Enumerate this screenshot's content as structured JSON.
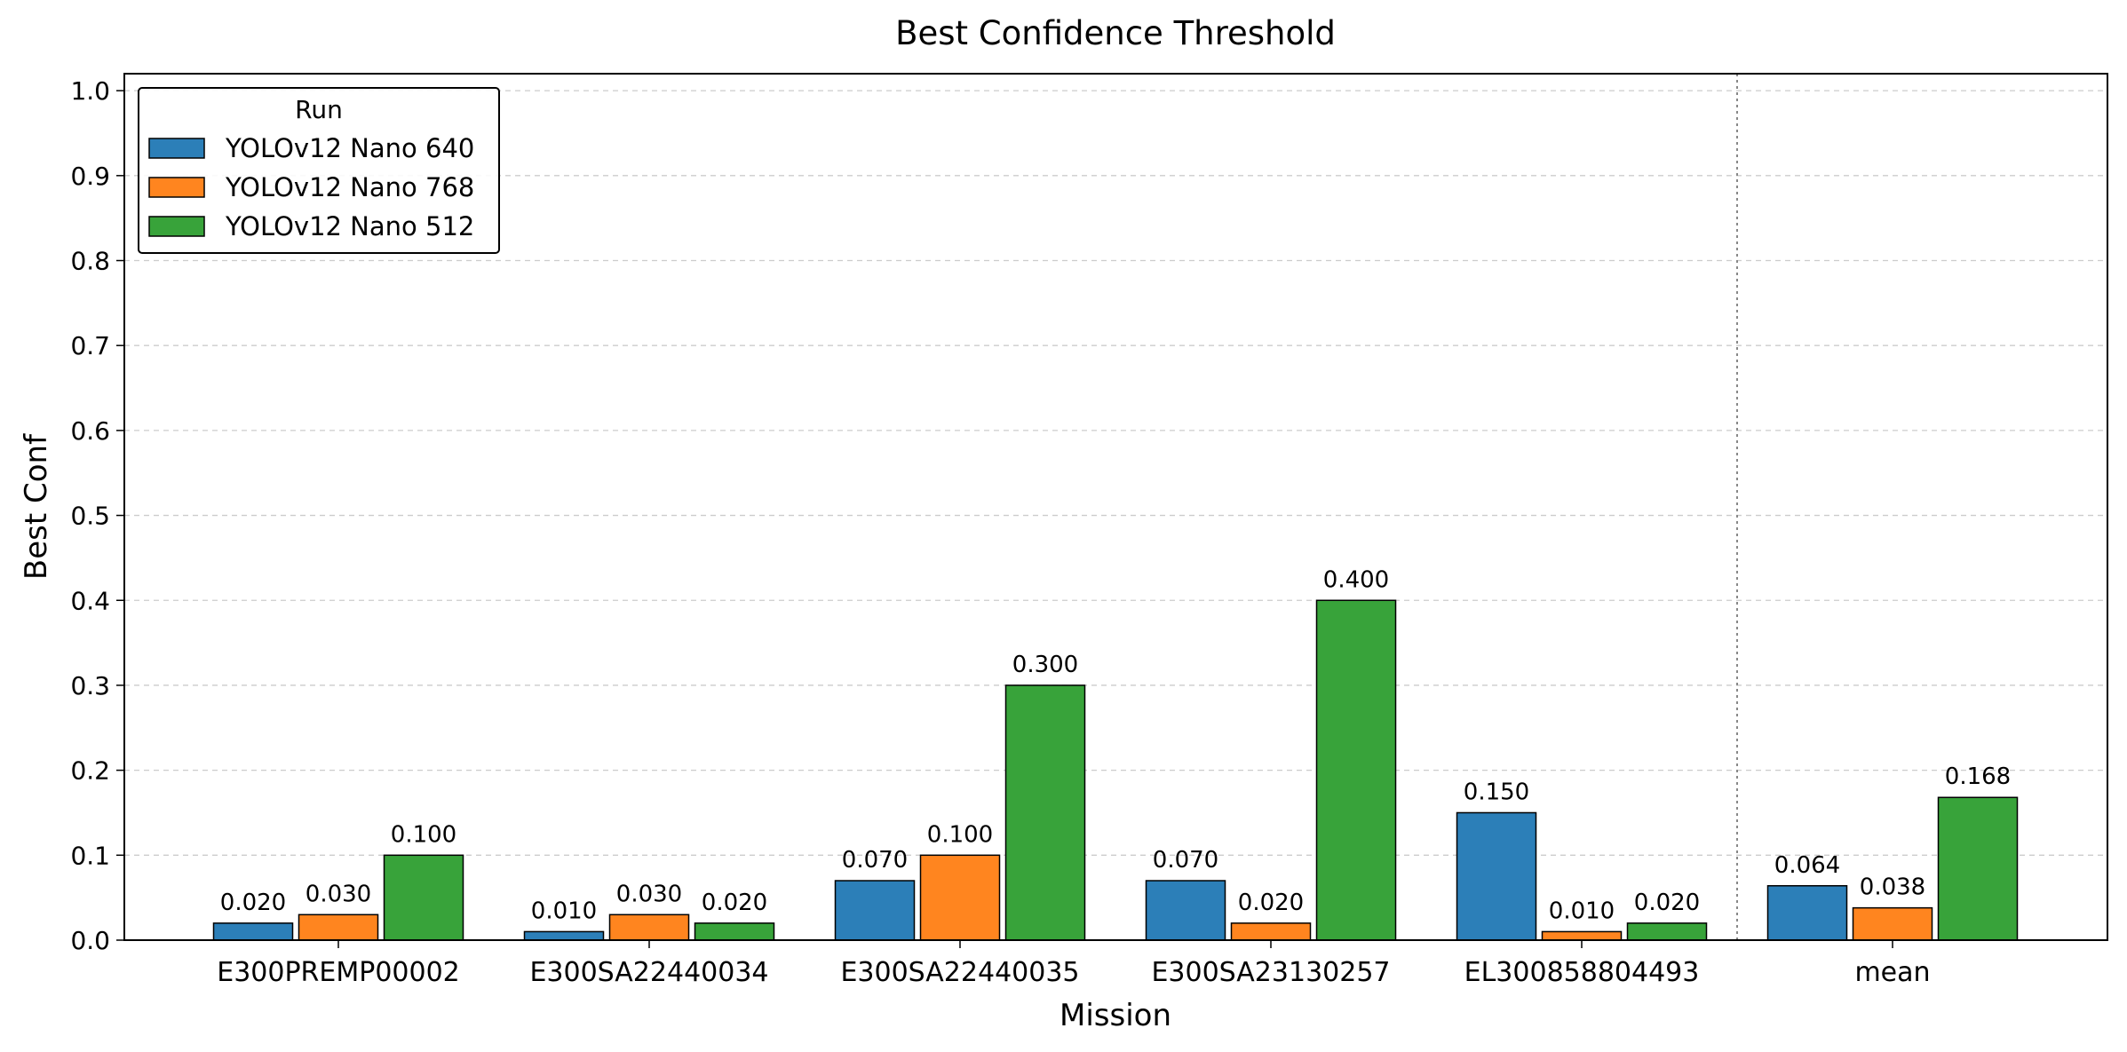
{
  "chart_data": {
    "type": "bar",
    "title": "Best Confidence Threshold",
    "xlabel": "Mission",
    "ylabel": "Best Conf",
    "ylim": [
      0,
      1.02
    ],
    "yticks": [
      "0.0",
      "0.1",
      "0.2",
      "0.3",
      "0.4",
      "0.5",
      "0.6",
      "0.7",
      "0.8",
      "0.9",
      "1.0"
    ],
    "grid": "y-dashed",
    "categories": [
      "E300PREMP00002",
      "E300SA22440034",
      "E300SA22440035",
      "E300SA23130257",
      "EL300858804493",
      "mean"
    ],
    "separator_after_category": 4,
    "legend": {
      "title": "Run",
      "placement": "upper-left"
    },
    "series": [
      {
        "name": "YOLOv12 Nano 640",
        "color": "#2c7fb8",
        "values": [
          0.02,
          0.01,
          0.07,
          0.07,
          0.15,
          0.064
        ],
        "labels": [
          "0.020",
          "0.010",
          "0.070",
          "0.070",
          "0.150",
          "0.064"
        ]
      },
      {
        "name": "YOLOv12 Nano 768",
        "color": "#ff851f",
        "values": [
          0.03,
          0.03,
          0.1,
          0.02,
          0.01,
          0.038
        ],
        "labels": [
          "0.030",
          "0.030",
          "0.100",
          "0.020",
          "0.010",
          "0.038"
        ]
      },
      {
        "name": "YOLOv12 Nano 512",
        "color": "#38a33a",
        "values": [
          0.1,
          0.02,
          0.3,
          0.4,
          0.02,
          0.168
        ],
        "labels": [
          "0.100",
          "0.020",
          "0.300",
          "0.400",
          "0.020",
          "0.168"
        ]
      }
    ]
  }
}
